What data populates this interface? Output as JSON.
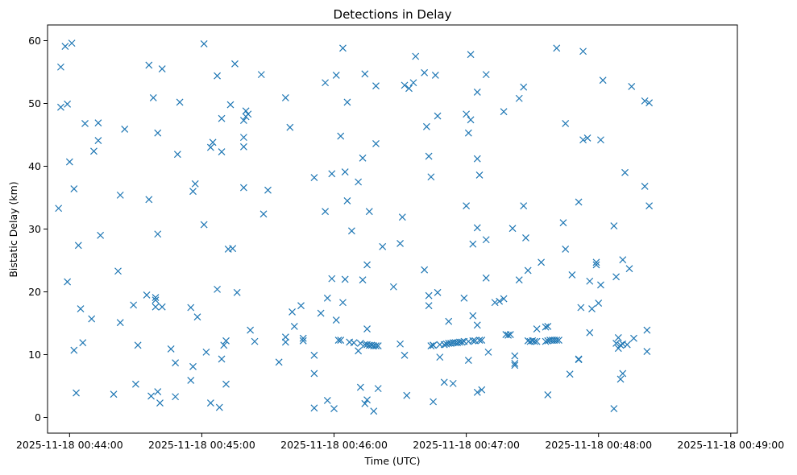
{
  "chart_data": {
    "type": "scatter",
    "title": "Detections in Delay",
    "xlabel": "Time (UTC)",
    "ylabel": "Bistatic Delay (km)",
    "marker": "x",
    "marker_color": "#1f77b4",
    "grid": false,
    "xlim": [
      "2025-11-18 00:43:50",
      "2025-11-18 00:49:03"
    ],
    "ylim": [
      -2.5,
      62.5
    ],
    "x_ticks": [
      "2025-11-18 00:44:00",
      "2025-11-18 00:45:00",
      "2025-11-18 00:46:00",
      "2025-11-18 00:47:00",
      "2025-11-18 00:48:00",
      "2025-11-18 00:49:00"
    ],
    "y_ticks": [
      0,
      10,
      20,
      30,
      40,
      50,
      60
    ],
    "points": [
      [
        "2025-11-18 00:43:55",
        33.3
      ],
      [
        "2025-11-18 00:43:56",
        55.8
      ],
      [
        "2025-11-18 00:43:56",
        49.4
      ],
      [
        "2025-11-18 00:43:58",
        59.1
      ],
      [
        "2025-11-18 00:43:59",
        21.6
      ],
      [
        "2025-11-18 00:43:59",
        49.9
      ],
      [
        "2025-11-18 00:44:00",
        40.7
      ],
      [
        "2025-11-18 00:44:01",
        59.6
      ],
      [
        "2025-11-18 00:44:02",
        36.4
      ],
      [
        "2025-11-18 00:44:02",
        10.7
      ],
      [
        "2025-11-18 00:44:03",
        3.9
      ],
      [
        "2025-11-18 00:44:04",
        27.4
      ],
      [
        "2025-11-18 00:44:05",
        17.3
      ],
      [
        "2025-11-18 00:44:06",
        11.9
      ],
      [
        "2025-11-18 00:44:07",
        46.8
      ],
      [
        "2025-11-18 00:44:10",
        15.7
      ],
      [
        "2025-11-18 00:44:11",
        42.4
      ],
      [
        "2025-11-18 00:44:13",
        46.9
      ],
      [
        "2025-11-18 00:44:13",
        44.1
      ],
      [
        "2025-11-18 00:44:14",
        29.0
      ],
      [
        "2025-11-18 00:44:20",
        3.7
      ],
      [
        "2025-11-18 00:44:22",
        23.3
      ],
      [
        "2025-11-18 00:44:23",
        35.4
      ],
      [
        "2025-11-18 00:44:23",
        15.1
      ],
      [
        "2025-11-18 00:44:25",
        45.9
      ],
      [
        "2025-11-18 00:44:29",
        17.9
      ],
      [
        "2025-11-18 00:44:30",
        5.3
      ],
      [
        "2025-11-18 00:44:31",
        11.5
      ],
      [
        "2025-11-18 00:44:35",
        19.5
      ],
      [
        "2025-11-18 00:44:36",
        34.7
      ],
      [
        "2025-11-18 00:44:36",
        56.1
      ],
      [
        "2025-11-18 00:44:37",
        3.4
      ],
      [
        "2025-11-18 00:44:38",
        50.9
      ],
      [
        "2025-11-18 00:44:39",
        18.7
      ],
      [
        "2025-11-18 00:44:39",
        19.1
      ],
      [
        "2025-11-18 00:44:39",
        17.6
      ],
      [
        "2025-11-18 00:44:40",
        45.3
      ],
      [
        "2025-11-18 00:44:40",
        29.2
      ],
      [
        "2025-11-18 00:44:40",
        4.1
      ],
      [
        "2025-11-18 00:44:41",
        2.3
      ],
      [
        "2025-11-18 00:44:42",
        55.5
      ],
      [
        "2025-11-18 00:44:42",
        17.6
      ],
      [
        "2025-11-18 00:44:46",
        10.9
      ],
      [
        "2025-11-18 00:44:48",
        3.3
      ],
      [
        "2025-11-18 00:44:48",
        8.7
      ],
      [
        "2025-11-18 00:44:49",
        41.9
      ],
      [
        "2025-11-18 00:44:50",
        50.2
      ],
      [
        "2025-11-18 00:44:55",
        5.9
      ],
      [
        "2025-11-18 00:44:55",
        17.5
      ],
      [
        "2025-11-18 00:44:56",
        8.1
      ],
      [
        "2025-11-18 00:44:56",
        36.0
      ],
      [
        "2025-11-18 00:44:57",
        37.2
      ],
      [
        "2025-11-18 00:44:58",
        16.0
      ],
      [
        "2025-11-18 00:45:01",
        30.7
      ],
      [
        "2025-11-18 00:45:01",
        59.5
      ],
      [
        "2025-11-18 00:45:02",
        10.4
      ],
      [
        "2025-11-18 00:45:04",
        2.3
      ],
      [
        "2025-11-18 00:45:04",
        43.0
      ],
      [
        "2025-11-18 00:45:05",
        43.8
      ],
      [
        "2025-11-18 00:45:07",
        54.4
      ],
      [
        "2025-11-18 00:45:07",
        20.4
      ],
      [
        "2025-11-18 00:45:08",
        1.6
      ],
      [
        "2025-11-18 00:45:09",
        9.3
      ],
      [
        "2025-11-18 00:45:09",
        42.3
      ],
      [
        "2025-11-18 00:45:09",
        47.6
      ],
      [
        "2025-11-18 00:45:10",
        11.5
      ],
      [
        "2025-11-18 00:45:11",
        5.3
      ],
      [
        "2025-11-18 00:45:11",
        12.2
      ],
      [
        "2025-11-18 00:45:12",
        26.8
      ],
      [
        "2025-11-18 00:45:13",
        49.8
      ],
      [
        "2025-11-18 00:45:14",
        26.9
      ],
      [
        "2025-11-18 00:45:15",
        56.3
      ],
      [
        "2025-11-18 00:45:16",
        19.9
      ],
      [
        "2025-11-18 00:45:19",
        44.6
      ],
      [
        "2025-11-18 00:45:19",
        43.1
      ],
      [
        "2025-11-18 00:45:19",
        36.6
      ],
      [
        "2025-11-18 00:45:19",
        47.3
      ],
      [
        "2025-11-18 00:45:20",
        48.8
      ],
      [
        "2025-11-18 00:45:20",
        47.9
      ],
      [
        "2025-11-18 00:45:21",
        48.3
      ],
      [
        "2025-11-18 00:45:22",
        13.9
      ],
      [
        "2025-11-18 00:45:24",
        12.1
      ],
      [
        "2025-11-18 00:45:27",
        54.6
      ],
      [
        "2025-11-18 00:45:28",
        32.4
      ],
      [
        "2025-11-18 00:45:30",
        36.2
      ],
      [
        "2025-11-18 00:45:35",
        8.8
      ],
      [
        "2025-11-18 00:45:38",
        12.8
      ],
      [
        "2025-11-18 00:45:38",
        12.0
      ],
      [
        "2025-11-18 00:45:38",
        50.9
      ],
      [
        "2025-11-18 00:45:40",
        46.2
      ],
      [
        "2025-11-18 00:45:41",
        16.8
      ],
      [
        "2025-11-18 00:45:42",
        14.5
      ],
      [
        "2025-11-18 00:45:45",
        17.8
      ],
      [
        "2025-11-18 00:45:46",
        12.6
      ],
      [
        "2025-11-18 00:45:46",
        12.2
      ],
      [
        "2025-11-18 00:45:51",
        1.5
      ],
      [
        "2025-11-18 00:45:51",
        9.9
      ],
      [
        "2025-11-18 00:45:51",
        7.0
      ],
      [
        "2025-11-18 00:45:51",
        38.2
      ],
      [
        "2025-11-18 00:45:54",
        16.6
      ],
      [
        "2025-11-18 00:45:56",
        53.3
      ],
      [
        "2025-11-18 00:45:56",
        32.8
      ],
      [
        "2025-11-18 00:45:57",
        19.0
      ],
      [
        "2025-11-18 00:45:57",
        2.7
      ],
      [
        "2025-11-18 00:45:59",
        38.8
      ],
      [
        "2025-11-18 00:45:59",
        22.1
      ],
      [
        "2025-11-18 00:46:00",
        1.4
      ],
      [
        "2025-11-18 00:46:01",
        54.5
      ],
      [
        "2025-11-18 00:46:01",
        15.5
      ],
      [
        "2025-11-18 00:46:02",
        12.3
      ],
      [
        "2025-11-18 00:46:03",
        44.8
      ],
      [
        "2025-11-18 00:46:03",
        12.3
      ],
      [
        "2025-11-18 00:46:04",
        18.3
      ],
      [
        "2025-11-18 00:46:04",
        58.8
      ],
      [
        "2025-11-18 00:46:05",
        39.1
      ],
      [
        "2025-11-18 00:46:05",
        22.0
      ],
      [
        "2025-11-18 00:46:06",
        34.5
      ],
      [
        "2025-11-18 00:46:06",
        50.2
      ],
      [
        "2025-11-18 00:46:07",
        12.0
      ],
      [
        "2025-11-18 00:46:08",
        29.7
      ],
      [
        "2025-11-18 00:46:09",
        11.9
      ],
      [
        "2025-11-18 00:46:11",
        37.5
      ],
      [
        "2025-11-18 00:46:11",
        10.6
      ],
      [
        "2025-11-18 00:46:12",
        4.8
      ],
      [
        "2025-11-18 00:46:12",
        11.8
      ],
      [
        "2025-11-18 00:46:13",
        21.9
      ],
      [
        "2025-11-18 00:46:13",
        41.3
      ],
      [
        "2025-11-18 00:46:14",
        11.6
      ],
      [
        "2025-11-18 00:46:14",
        54.7
      ],
      [
        "2025-11-18 00:46:14",
        2.2
      ],
      [
        "2025-11-18 00:46:15",
        2.8
      ],
      [
        "2025-11-18 00:46:15",
        14.1
      ],
      [
        "2025-11-18 00:46:15",
        11.6
      ],
      [
        "2025-11-18 00:46:15",
        24.3
      ],
      [
        "2025-11-18 00:46:16",
        11.5
      ],
      [
        "2025-11-18 00:46:16",
        32.8
      ],
      [
        "2025-11-18 00:46:17",
        11.5
      ],
      [
        "2025-11-18 00:46:18",
        11.4
      ],
      [
        "2025-11-18 00:46:18",
        1.0
      ],
      [
        "2025-11-18 00:46:19",
        11.4
      ],
      [
        "2025-11-18 00:46:19",
        52.8
      ],
      [
        "2025-11-18 00:46:19",
        43.6
      ],
      [
        "2025-11-18 00:46:20",
        11.4
      ],
      [
        "2025-11-18 00:46:20",
        4.6
      ],
      [
        "2025-11-18 00:46:22",
        27.2
      ],
      [
        "2025-11-18 00:46:27",
        20.8
      ],
      [
        "2025-11-18 00:46:30",
        11.7
      ],
      [
        "2025-11-18 00:46:30",
        27.7
      ],
      [
        "2025-11-18 00:46:31",
        31.9
      ],
      [
        "2025-11-18 00:46:32",
        52.9
      ],
      [
        "2025-11-18 00:46:32",
        9.9
      ],
      [
        "2025-11-18 00:46:33",
        3.5
      ],
      [
        "2025-11-18 00:46:34",
        52.4
      ],
      [
        "2025-11-18 00:46:36",
        53.3
      ],
      [
        "2025-11-18 00:46:37",
        57.5
      ],
      [
        "2025-11-18 00:46:41",
        54.9
      ],
      [
        "2025-11-18 00:46:41",
        23.5
      ],
      [
        "2025-11-18 00:46:42",
        46.3
      ],
      [
        "2025-11-18 00:46:43",
        41.6
      ],
      [
        "2025-11-18 00:46:43",
        17.8
      ],
      [
        "2025-11-18 00:46:43",
        19.4
      ],
      [
        "2025-11-18 00:46:44",
        11.4
      ],
      [
        "2025-11-18 00:46:44",
        38.3
      ],
      [
        "2025-11-18 00:46:45",
        11.5
      ],
      [
        "2025-11-18 00:46:45",
        2.5
      ],
      [
        "2025-11-18 00:46:45",
        11.5
      ],
      [
        "2025-11-18 00:46:46",
        54.5
      ],
      [
        "2025-11-18 00:46:47",
        48.0
      ],
      [
        "2025-11-18 00:46:47",
        19.9
      ],
      [
        "2025-11-18 00:46:48",
        9.6
      ],
      [
        "2025-11-18 00:46:48",
        11.6
      ],
      [
        "2025-11-18 00:46:50",
        11.6
      ],
      [
        "2025-11-18 00:46:50",
        5.6
      ],
      [
        "2025-11-18 00:46:51",
        11.7
      ],
      [
        "2025-11-18 00:46:52",
        15.3
      ],
      [
        "2025-11-18 00:46:52",
        11.8
      ],
      [
        "2025-11-18 00:46:53",
        11.8
      ],
      [
        "2025-11-18 00:46:54",
        11.9
      ],
      [
        "2025-11-18 00:46:54",
        5.4
      ],
      [
        "2025-11-18 00:46:55",
        11.9
      ],
      [
        "2025-11-18 00:46:56",
        11.9
      ],
      [
        "2025-11-18 00:46:57",
        12.0
      ],
      [
        "2025-11-18 00:46:58",
        12.0
      ],
      [
        "2025-11-18 00:46:59",
        12.1
      ],
      [
        "2025-11-18 00:46:59",
        19.0
      ],
      [
        "2025-11-18 00:47:00",
        33.7
      ],
      [
        "2025-11-18 00:47:00",
        48.3
      ],
      [
        "2025-11-18 00:47:01",
        12.1
      ],
      [
        "2025-11-18 00:47:01",
        45.3
      ],
      [
        "2025-11-18 00:47:01",
        9.1
      ],
      [
        "2025-11-18 00:47:02",
        57.8
      ],
      [
        "2025-11-18 00:47:02",
        47.4
      ],
      [
        "2025-11-18 00:47:03",
        12.2
      ],
      [
        "2025-11-18 00:47:03",
        16.2
      ],
      [
        "2025-11-18 00:47:03",
        27.6
      ],
      [
        "2025-11-18 00:47:04",
        12.2
      ],
      [
        "2025-11-18 00:47:05",
        14.7
      ],
      [
        "2025-11-18 00:47:05",
        4.0
      ],
      [
        "2025-11-18 00:47:05",
        41.2
      ],
      [
        "2025-11-18 00:47:05",
        51.8
      ],
      [
        "2025-11-18 00:47:05",
        30.2
      ],
      [
        "2025-11-18 00:47:06",
        12.3
      ],
      [
        "2025-11-18 00:47:06",
        38.6
      ],
      [
        "2025-11-18 00:47:07",
        12.3
      ],
      [
        "2025-11-18 00:47:07",
        4.4
      ],
      [
        "2025-11-18 00:47:09",
        28.3
      ],
      [
        "2025-11-18 00:47:09",
        54.6
      ],
      [
        "2025-11-18 00:47:09",
        22.2
      ],
      [
        "2025-11-18 00:47:10",
        10.4
      ],
      [
        "2025-11-18 00:47:13",
        18.3
      ],
      [
        "2025-11-18 00:47:15",
        18.5
      ],
      [
        "2025-11-18 00:47:17",
        48.7
      ],
      [
        "2025-11-18 00:47:17",
        18.9
      ],
      [
        "2025-11-18 00:47:18",
        13.2
      ],
      [
        "2025-11-18 00:47:19",
        13.1
      ],
      [
        "2025-11-18 00:47:20",
        13.2
      ],
      [
        "2025-11-18 00:47:21",
        30.1
      ],
      [
        "2025-11-18 00:47:22",
        9.8
      ],
      [
        "2025-11-18 00:47:22",
        8.6
      ],
      [
        "2025-11-18 00:47:22",
        8.3
      ],
      [
        "2025-11-18 00:47:24",
        50.8
      ],
      [
        "2025-11-18 00:47:24",
        21.9
      ],
      [
        "2025-11-18 00:47:26",
        52.6
      ],
      [
        "2025-11-18 00:47:26",
        33.7
      ],
      [
        "2025-11-18 00:47:27",
        28.6
      ],
      [
        "2025-11-18 00:47:28",
        23.4
      ],
      [
        "2025-11-18 00:47:28",
        12.2
      ],
      [
        "2025-11-18 00:47:29",
        12.1
      ],
      [
        "2025-11-18 00:47:30",
        12.2
      ],
      [
        "2025-11-18 00:47:31",
        12.1
      ],
      [
        "2025-11-18 00:47:32",
        14.1
      ],
      [
        "2025-11-18 00:47:32",
        12.1
      ],
      [
        "2025-11-18 00:47:34",
        24.7
      ],
      [
        "2025-11-18 00:47:36",
        14.4
      ],
      [
        "2025-11-18 00:47:36",
        12.1
      ],
      [
        "2025-11-18 00:47:37",
        14.5
      ],
      [
        "2025-11-18 00:47:37",
        3.6
      ],
      [
        "2025-11-18 00:47:37",
        12.2
      ],
      [
        "2025-11-18 00:47:38",
        12.3
      ],
      [
        "2025-11-18 00:47:39",
        12.3
      ],
      [
        "2025-11-18 00:47:40",
        12.3
      ],
      [
        "2025-11-18 00:47:41",
        12.3
      ],
      [
        "2025-11-18 00:47:41",
        58.8
      ],
      [
        "2025-11-18 00:47:42",
        12.3
      ],
      [
        "2025-11-18 00:47:44",
        31.0
      ],
      [
        "2025-11-18 00:47:45",
        46.8
      ],
      [
        "2025-11-18 00:47:45",
        26.8
      ],
      [
        "2025-11-18 00:47:47",
        6.9
      ],
      [
        "2025-11-18 00:47:48",
        22.7
      ],
      [
        "2025-11-18 00:47:51",
        9.3
      ],
      [
        "2025-11-18 00:47:51",
        34.3
      ],
      [
        "2025-11-18 00:47:51",
        9.2
      ],
      [
        "2025-11-18 00:47:52",
        17.5
      ],
      [
        "2025-11-18 00:47:53",
        58.3
      ],
      [
        "2025-11-18 00:47:53",
        44.2
      ],
      [
        "2025-11-18 00:47:55",
        44.5
      ],
      [
        "2025-11-18 00:47:56",
        21.7
      ],
      [
        "2025-11-18 00:47:56",
        13.5
      ],
      [
        "2025-11-18 00:47:57",
        17.3
      ],
      [
        "2025-11-18 00:47:59",
        24.3
      ],
      [
        "2025-11-18 00:47:59",
        24.7
      ],
      [
        "2025-11-18 00:48:00",
        18.2
      ],
      [
        "2025-11-18 00:48:01",
        44.2
      ],
      [
        "2025-11-18 00:48:01",
        21.1
      ],
      [
        "2025-11-18 00:48:02",
        53.7
      ],
      [
        "2025-11-18 00:48:07",
        1.4
      ],
      [
        "2025-11-18 00:48:07",
        30.5
      ],
      [
        "2025-11-18 00:48:08",
        22.4
      ],
      [
        "2025-11-18 00:48:08",
        11.8
      ],
      [
        "2025-11-18 00:48:09",
        11.0
      ],
      [
        "2025-11-18 00:48:09",
        12.7
      ],
      [
        "2025-11-18 00:48:10",
        11.5
      ],
      [
        "2025-11-18 00:48:10",
        6.1
      ],
      [
        "2025-11-18 00:48:11",
        25.1
      ],
      [
        "2025-11-18 00:48:11",
        11.7
      ],
      [
        "2025-11-18 00:48:11",
        7.0
      ],
      [
        "2025-11-18 00:48:12",
        39.0
      ],
      [
        "2025-11-18 00:48:13",
        11.6
      ],
      [
        "2025-11-18 00:48:14",
        23.7
      ],
      [
        "2025-11-18 00:48:15",
        52.7
      ],
      [
        "2025-11-18 00:48:16",
        12.6
      ],
      [
        "2025-11-18 00:48:21",
        36.8
      ],
      [
        "2025-11-18 00:48:21",
        50.4
      ],
      [
        "2025-11-18 00:48:22",
        13.9
      ],
      [
        "2025-11-18 00:48:22",
        10.5
      ],
      [
        "2025-11-18 00:48:23",
        50.1
      ],
      [
        "2025-11-18 00:48:23",
        33.7
      ]
    ]
  }
}
